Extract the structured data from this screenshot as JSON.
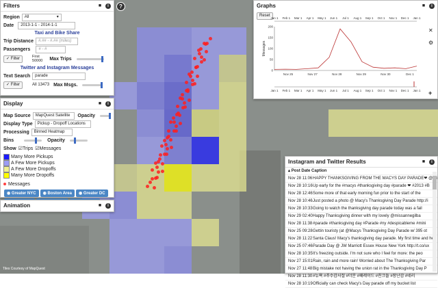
{
  "filters": {
    "title": "Filters",
    "region_label": "Region",
    "region_value": "All",
    "date_label": "Date",
    "date_value": "2013-1-1 - 2014-1-1",
    "taxi_title": "Taxi and Bike Share",
    "trip_distance_label": "Trip Distance",
    "trip_distance_placeholder": "#.## - #.## (miles)",
    "passengers_label": "Passengers",
    "passengers_placeholder": "# - #",
    "filter_button": "Filter",
    "first_label": "First",
    "first_value": "50000",
    "max_trips_label": "Max Trips",
    "social_title": "Twitter and Instagram Messages",
    "text_search_label": "Text Search",
    "text_search_value": "parade",
    "filter_button2": "Filter",
    "all_label": "All 13473",
    "max_msgs_label": "Max Msgs."
  },
  "display": {
    "title": "Display",
    "map_source_label": "Map Source",
    "map_source_value": "MapQuest Satellite",
    "opacity_label": "Opacity",
    "display_type_label": "Display Type",
    "display_type_value": "Pickup - Dropoff Locations",
    "processing_label": "Processing",
    "processing_value": "Binned Heatmap",
    "bins_label": "Bins",
    "opacity_label2": "Opacity",
    "show_label": "Show",
    "trips_label": "Trips",
    "messages_label": "Messages",
    "legend": [
      {
        "label": "Many More Pickups",
        "color": "#1a1aff"
      },
      {
        "label": "A Few More Pickups",
        "color": "#9c9cf5"
      },
      {
        "label": "A Few More Dropoffs",
        "color": "#f0f090"
      },
      {
        "label": "Many More Dropoffs",
        "color": "#ffff00"
      }
    ],
    "messages_legend": "Messages",
    "regions": [
      "Greater NYC",
      "Boston Area",
      "Greater DC",
      "Manhattan",
      "Boston Ctr.",
      "Center DC"
    ]
  },
  "animation": {
    "title": "Animation"
  },
  "graphs": {
    "title": "Graphs",
    "reset_label": "Reset",
    "ylabel": "Messages",
    "y_ticks": [
      "200",
      "150",
      "100",
      "50",
      "0"
    ],
    "x_ticks_top": [
      "Jan 1",
      "Feb 1",
      "Mar 1",
      "Apr 1",
      "May 1",
      "Jun 1",
      "Jul 1",
      "Aug 1",
      "Sep 1",
      "Oct 1",
      "Nov 1",
      "Dec 1",
      "Jan 1"
    ],
    "x_ticks_bottom": [
      "Jan 1",
      "Feb 1",
      "Mar 1",
      "Apr 1",
      "May 1",
      "Jun 1",
      "Jul 1",
      "Aug 1",
      "Sep 1",
      "Oct 1",
      "Nov 1",
      "Dec 1",
      "Jan 1"
    ],
    "x_ticks_main": [
      "Nov 25",
      "Nov 27",
      "Nov 28",
      "Nov 29",
      "Nov 30",
      "Dec 1"
    ]
  },
  "chart_data": {
    "type": "line",
    "ylabel": "Messages",
    "ylim": [
      0,
      200
    ],
    "x": [
      "Nov 25",
      "Nov 26",
      "Nov 27",
      "Nov 27.5",
      "Nov 28",
      "Nov 28.2",
      "Nov 28.4",
      "Nov 28.6",
      "Nov 28.8",
      "Nov 29",
      "Nov 29.5",
      "Nov 30",
      "Nov 30.5",
      "Dec 1"
    ],
    "values": [
      5,
      6,
      5,
      8,
      12,
      60,
      190,
      130,
      40,
      15,
      10,
      12,
      8,
      20
    ]
  },
  "instagram": {
    "title": "Instagram and Twitter Results",
    "col_header": "Post Date Caption",
    "rows": [
      {
        "date": "Nov 28 11:06",
        "text": "HAPPY THANKSGIVING FROM THE MACYS DAY PARADE❤ @bri"
      },
      {
        "date": "Nov 28 10:16",
        "text": "Up early for the #macys #thanksgiving day #parade ❤ #2013 #B"
      },
      {
        "date": "Nov 28 12:46",
        "text": "Some more of that early morning fun prior to the start of the"
      },
      {
        "date": "Nov 28 10:46",
        "text": "Just posted a photo @ Macy's Thanksgiving Day Parade http://i"
      },
      {
        "date": "Nov 28 10:33",
        "text": "Going to watch the thanksgiving day parade today was a fail"
      },
      {
        "date": "Nov 29 02:40",
        "text": "Happy Thanksgiving dinner with my lovely @missannegilba"
      },
      {
        "date": "Nov 28 11:38",
        "text": "#parade #thanksgiving day #Parade #ny #despicableme #mini"
      },
      {
        "date": "Nov 25 09:28",
        "text": "Gettin touristy (at @Macys Thanksgiving Day Parade w/ 395 ot"
      },
      {
        "date": "Nov 28 11:22",
        "text": "Santa Claus! Macy's thanksgiving day parade. My first time and he"
      },
      {
        "date": "Nov 25 07:46",
        "text": "Parade Day @ JW Marriott Essex House New York http://t.co/ux"
      },
      {
        "date": "Nov 28 10:35",
        "text": "It's freezing outside. I'm not sure who I feel for more: the peo"
      },
      {
        "date": "Nov 27 15:01",
        "text": "Rain, rain and more rain! Worried about The Thanksgiving Par"
      },
      {
        "date": "Nov 27 11:48",
        "text": "Big mistake not having the union rat in the Thanksgiving Day P"
      },
      {
        "date": "Nov 28 11:30",
        "text": "#뉴욕 #추수감사절 #더운 #패레이드 #친크들 #장난감 #네리"
      },
      {
        "date": "Nov 28 10:19",
        "text": "Officially can check Macy's Day parade off my bucket list"
      }
    ]
  },
  "map_credit": "Tiles Courtesy of MapQuest",
  "help_icon": "?"
}
